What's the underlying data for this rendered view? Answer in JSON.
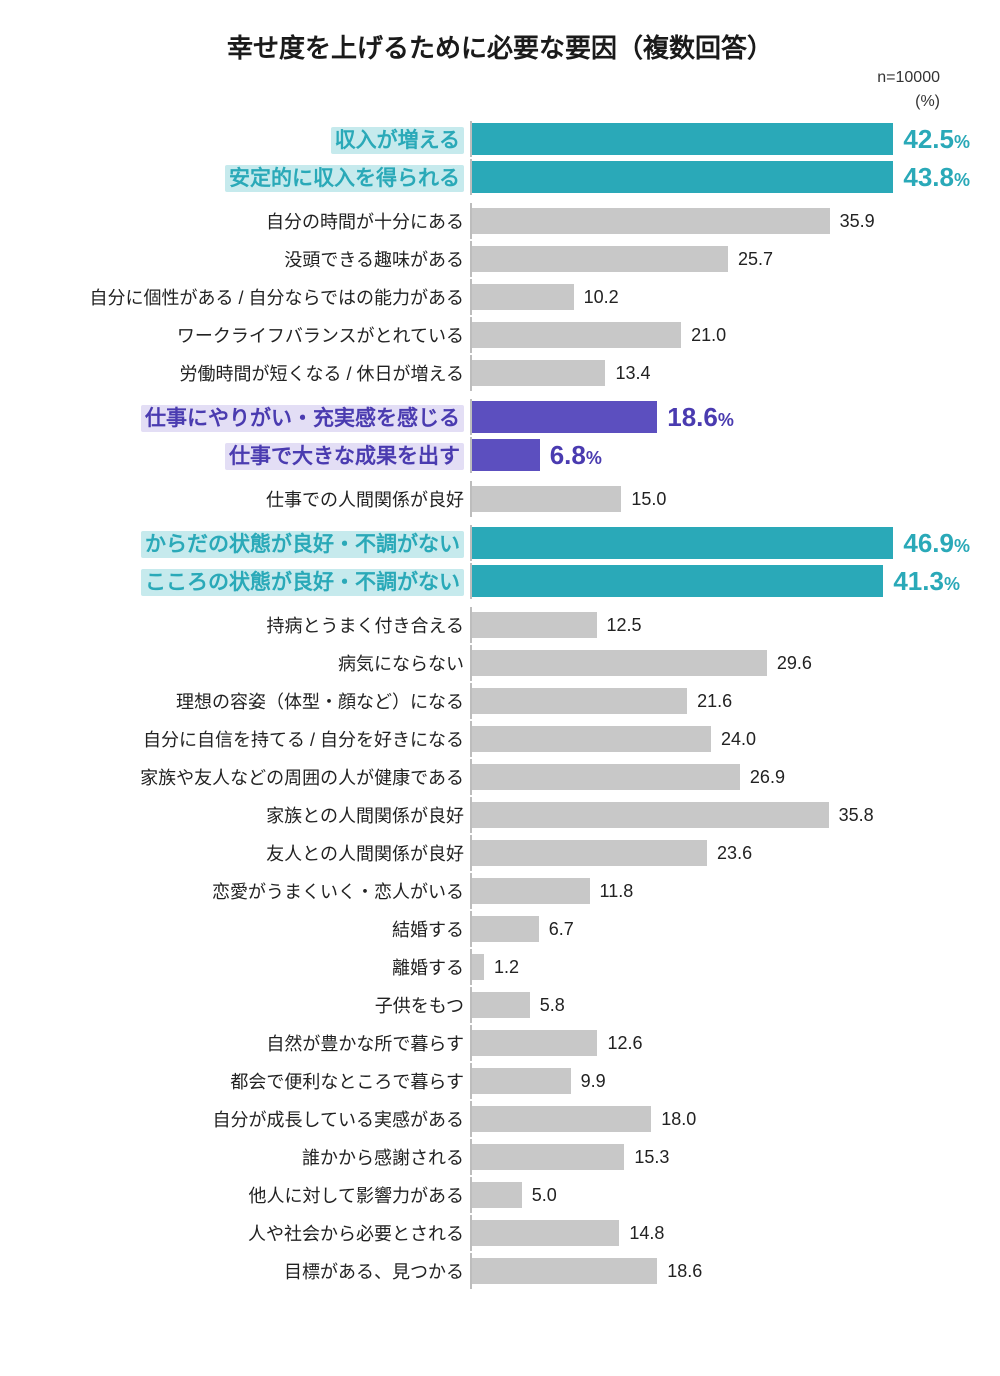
{
  "title": "幸せ度を上げるために必要な要因（複数回答）",
  "n_label": "n=10000",
  "unit_label": "(%)",
  "colors": {
    "teal": "#2aa9b8",
    "teal_text": "#2aa9b8",
    "teal_bg": "#c6eaed",
    "purple": "#5c4fbf",
    "purple_text": "#4a3bb0",
    "purple_bg": "#e3def5",
    "gray": "#c8c8c8",
    "text": "#222222",
    "axis": "#bdbdbd"
  },
  "max_value": 50,
  "items": [
    {
      "label": "収入が増える",
      "value": 42.5,
      "style": "teal",
      "show_pct": true
    },
    {
      "label": "安定的に収入を得られる",
      "value": 43.8,
      "style": "teal",
      "show_pct": true
    },
    {
      "label": "自分の時間が十分にある",
      "value": 35.9,
      "style": "gray",
      "gap_before": true
    },
    {
      "label": "没頭できる趣味がある",
      "value": 25.7,
      "style": "gray"
    },
    {
      "label": "自分に個性がある / 自分ならではの能力がある",
      "value": 10.2,
      "style": "gray"
    },
    {
      "label": "ワークライフバランスがとれている",
      "value": 21.0,
      "style": "gray"
    },
    {
      "label": "労働時間が短くなる / 休日が増える",
      "value": 13.4,
      "style": "gray"
    },
    {
      "label": "仕事にやりがい・充実感を感じる",
      "value": 18.6,
      "style": "purple",
      "show_pct": true,
      "gap_before": true
    },
    {
      "label": "仕事で大きな成果を出す",
      "value": 6.8,
      "style": "purple",
      "show_pct": true
    },
    {
      "label": "仕事での人間関係が良好",
      "value": 15.0,
      "style": "gray",
      "gap_before": true
    },
    {
      "label": "からだの状態が良好・不調がない",
      "value": 46.9,
      "style": "teal",
      "show_pct": true,
      "gap_before": true
    },
    {
      "label": "こころの状態が良好・不調がない",
      "value": 41.3,
      "style": "teal",
      "show_pct": true
    },
    {
      "label": "持病とうまく付き合える",
      "value": 12.5,
      "style": "gray",
      "gap_before": true
    },
    {
      "label": "病気にならない",
      "value": 29.6,
      "style": "gray"
    },
    {
      "label": "理想の容姿（体型・顔など）になる",
      "value": 21.6,
      "style": "gray"
    },
    {
      "label": "自分に自信を持てる / 自分を好きになる",
      "value": 24.0,
      "style": "gray"
    },
    {
      "label": "家族や友人などの周囲の人が健康である",
      "value": 26.9,
      "style": "gray"
    },
    {
      "label": "家族との人間関係が良好",
      "value": 35.8,
      "style": "gray"
    },
    {
      "label": "友人との人間関係が良好",
      "value": 23.6,
      "style": "gray"
    },
    {
      "label": "恋愛がうまくいく・恋人がいる",
      "value": 11.8,
      "style": "gray"
    },
    {
      "label": "結婚する",
      "value": 6.7,
      "style": "gray"
    },
    {
      "label": "離婚する",
      "value": 1.2,
      "style": "gray"
    },
    {
      "label": "子供をもつ",
      "value": 5.8,
      "style": "gray"
    },
    {
      "label": "自然が豊かな所で暮らす",
      "value": 12.6,
      "style": "gray"
    },
    {
      "label": "都会で便利なところで暮らす",
      "value": 9.9,
      "style": "gray"
    },
    {
      "label": "自分が成長している実感がある",
      "value": 18.0,
      "style": "gray"
    },
    {
      "label": "誰かから感謝される",
      "value": 15.3,
      "style": "gray"
    },
    {
      "label": "他人に対して影響力がある",
      "value": 5.0,
      "style": "gray"
    },
    {
      "label": "人や社会から必要とされる",
      "value": 14.8,
      "style": "gray"
    },
    {
      "label": "目標がある、見つかる",
      "value": 18.6,
      "style": "gray"
    }
  ]
}
